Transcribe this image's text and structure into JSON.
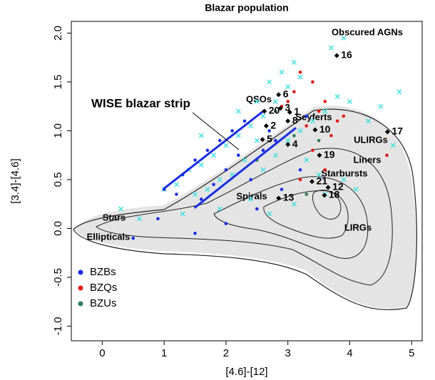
{
  "chart_data": {
    "type": "scatter",
    "title": "Blazar population",
    "x_label": "[4.6]-[12]",
    "y_label": "[3.4]-[4.6]",
    "xlim": [
      -0.5,
      5.17
    ],
    "ylim": [
      -1.15,
      2.12
    ],
    "xticks": [
      0,
      1,
      2,
      3,
      4,
      5
    ],
    "yticks": [
      {
        "value": -1,
        "label": "-1.0"
      },
      -0.5,
      {
        "value": 0,
        "label": "0.0"
      },
      0.5,
      {
        "value": 1,
        "label": "1.0"
      },
      1.5,
      {
        "value": 2,
        "label": "2.0"
      }
    ],
    "legend": "bottom-left",
    "series": [
      {
        "color": "#3fe0e0",
        "marker": "x",
        "x": [
          1.0,
          1.2,
          1.4,
          1.6,
          1.8,
          2.0,
          2.2,
          2.4,
          2.6,
          2.8,
          3.0,
          3.2,
          2.7,
          2.9,
          3.1,
          2.5,
          2.3,
          2.1,
          1.9,
          1.7,
          1.5,
          2.6,
          2.8,
          3.0,
          3.2,
          3.4,
          3.6,
          3.8,
          4.0,
          4.3,
          4.5,
          4.8,
          4.7,
          3.3,
          3.5,
          2.4,
          1.9,
          1.3,
          0.6,
          0.3,
          3.7,
          3.9,
          2.5,
          2.2,
          3.6,
          3.9,
          4.1,
          2.7,
          3.1,
          1.6
        ],
        "values": [
          0.4,
          0.45,
          0.6,
          0.65,
          0.75,
          0.85,
          0.95,
          1.05,
          1.15,
          1.3,
          1.45,
          1.55,
          1.5,
          1.6,
          1.7,
          0.9,
          0.7,
          0.55,
          0.5,
          0.4,
          0.35,
          0.6,
          0.75,
          0.9,
          1.0,
          1.1,
          1.2,
          1.35,
          1.3,
          1.1,
          1.25,
          1.4,
          0.85,
          0.7,
          0.55,
          0.3,
          0.2,
          0.15,
          0.1,
          0.2,
          1.85,
          1.95,
          1.3,
          1.2,
          0.35,
          0.5,
          0.4,
          0.15,
          0.25,
          0.95
        ]
      },
      {
        "name": "BZBs",
        "color": "#1a2ee0",
        "marker": "dot",
        "x": [
          1.0,
          1.3,
          1.5,
          1.7,
          1.9,
          2.1,
          2.3,
          2.0,
          1.6,
          2.4,
          2.2,
          1.8,
          2.6,
          2.8,
          0.9,
          1.5,
          2.0,
          2.5,
          3.2,
          2.9,
          1.2,
          2.7,
          3.3,
          0.5
        ],
        "values": [
          0.4,
          0.55,
          0.7,
          0.8,
          0.9,
          1.0,
          1.1,
          0.6,
          0.3,
          0.5,
          0.75,
          0.45,
          0.8,
          0.9,
          0.1,
          -0.05,
          0.05,
          0.2,
          0.6,
          0.4,
          0.35,
          1.0,
          1.15,
          -0.1
        ]
      },
      {
        "name": "BZQs",
        "color": "#e01a1a",
        "marker": "dot",
        "x": [
          3.2,
          3.4,
          3.1,
          3.6,
          3.5,
          3.3,
          3.8,
          3.7,
          3.9,
          3.4,
          3.6,
          3.2,
          4.6,
          3.0,
          2.9
        ],
        "values": [
          1.6,
          1.5,
          1.4,
          1.3,
          1.2,
          1.05,
          1.1,
          0.95,
          1.15,
          0.8,
          0.6,
          0.5,
          0.75,
          1.3,
          1.25
        ]
      },
      {
        "name": "BZUs",
        "color": "#2e7d5a",
        "marker": "dot",
        "x": [
          2.8,
          3.1,
          3.5,
          2.5,
          3.3
        ],
        "values": [
          1.2,
          0.95,
          0.9,
          0.7,
          0.35
        ]
      }
    ],
    "sources": {
      "labels": [
        "16",
        "6",
        "20",
        "3",
        "1",
        "2",
        "8",
        "10",
        "5",
        "4",
        "17",
        "19",
        "21",
        "12",
        "13",
        "18"
      ],
      "x": [
        3.79,
        2.85,
        2.62,
        2.88,
        3.03,
        2.65,
        3.0,
        3.44,
        2.59,
        3.0,
        4.61,
        3.51,
        3.39,
        3.65,
        2.85,
        3.59
      ],
      "y": [
        1.77,
        1.37,
        1.2,
        1.23,
        1.19,
        1.05,
        1.1,
        1.01,
        0.91,
        0.86,
        0.99,
        0.75,
        0.48,
        0.42,
        0.31,
        0.34
      ]
    },
    "strip_label": "WISE blazar strip",
    "strip_color": "#1a2ee0",
    "strip_lines": [
      {
        "x": [
          1.0,
          2.62
        ],
        "y": [
          0.41,
          1.21
        ]
      },
      {
        "x": [
          1.49,
          3.13
        ],
        "y": [
          0.21,
          1.03
        ]
      }
    ],
    "regions": [
      "Obscured AGNs",
      "QSOs",
      "Seyferts",
      "ULIRGs",
      "Liners",
      "Starbursts",
      "Spirals",
      "Stars",
      "Ellipticals",
      "LIRGs"
    ]
  }
}
